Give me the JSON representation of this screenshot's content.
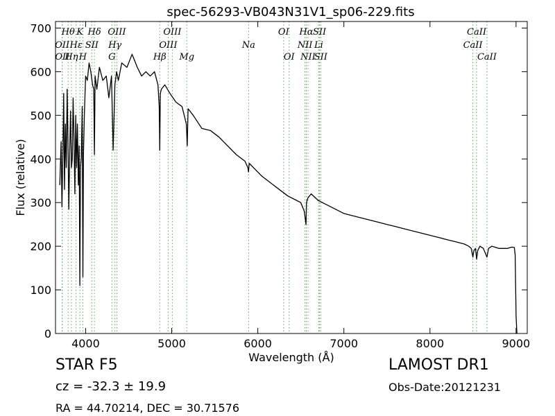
{
  "chart_data": {
    "type": "line",
    "title": "spec-56293-VB043N31V1_sp06-229.fits",
    "xlabel": "Wavelength (Å)",
    "ylabel": "Flux (relative)",
    "xlim": [
      3650,
      9130
    ],
    "ylim": [
      0,
      715
    ],
    "xticks": [
      4000,
      5000,
      6000,
      7000,
      8000,
      9000
    ],
    "yticks": [
      0,
      100,
      200,
      300,
      400,
      500,
      600,
      700
    ],
    "grid": false,
    "series": [
      {
        "name": "",
        "color": "#000000",
        "x": [
          3700,
          3715,
          3725,
          3735,
          3745,
          3755,
          3765,
          3775,
          3785,
          3795,
          3805,
          3815,
          3825,
          3835,
          3845,
          3855,
          3865,
          3875,
          3885,
          3895,
          3905,
          3915,
          3925,
          3933,
          3940,
          3950,
          3960,
          3968,
          3975,
          3985,
          4000,
          4020,
          4040,
          4060,
          4080,
          4095,
          4102,
          4110,
          4130,
          4160,
          4200,
          4240,
          4270,
          4300,
          4320,
          4340,
          4360,
          4380,
          4420,
          4480,
          4540,
          4600,
          4650,
          4700,
          4750,
          4800,
          4840,
          4855,
          4861,
          4868,
          4880,
          4920,
          4980,
          5050,
          5120,
          5170,
          5180,
          5190,
          5250,
          5350,
          5450,
          5550,
          5650,
          5750,
          5850,
          5885,
          5892,
          5900,
          5950,
          6050,
          6150,
          6250,
          6350,
          6450,
          6500,
          6540,
          6560,
          6563,
          6566,
          6580,
          6620,
          6700,
          6800,
          6900,
          7000,
          7100,
          7200,
          7300,
          7400,
          7500,
          7600,
          7700,
          7800,
          7900,
          8000,
          8100,
          8200,
          8300,
          8400,
          8450,
          8480,
          8498,
          8510,
          8530,
          8542,
          8555,
          8580,
          8620,
          8662,
          8680,
          8720,
          8800,
          8900,
          8950,
          8980,
          8990,
          9000,
          9010
        ],
        "values": [
          340,
          440,
          290,
          400,
          550,
          330,
          480,
          380,
          560,
          440,
          285,
          420,
          510,
          380,
          400,
          540,
          445,
          320,
          500,
          380,
          480,
          340,
          430,
          110,
          380,
          405,
          520,
          130,
          410,
          500,
          590,
          580,
          620,
          600,
          570,
          560,
          410,
          590,
          560,
          610,
          580,
          590,
          540,
          590,
          420,
          570,
          600,
          580,
          620,
          610,
          640,
          610,
          590,
          600,
          590,
          600,
          570,
          520,
          420,
          550,
          560,
          570,
          550,
          530,
          520,
          480,
          430,
          515,
          500,
          470,
          465,
          450,
          430,
          410,
          395,
          380,
          370,
          390,
          380,
          360,
          345,
          330,
          315,
          305,
          300,
          280,
          250,
          280,
          300,
          310,
          320,
          305,
          295,
          285,
          275,
          270,
          265,
          260,
          255,
          250,
          245,
          240,
          235,
          230,
          225,
          220,
          215,
          210,
          205,
          200,
          195,
          175,
          190,
          195,
          170,
          190,
          200,
          195,
          175,
          195,
          200,
          195,
          195,
          198,
          197,
          180,
          40,
          0
        ]
      }
    ],
    "spectral_lines": [
      {
        "label": "Hθ",
        "x": 3797,
        "row": 1
      },
      {
        "label": "K",
        "x": 3933,
        "row": 1
      },
      {
        "label": "Hδ",
        "x": 4102,
        "row": 1
      },
      {
        "label": "OIII",
        "x": 4363,
        "row": 1
      },
      {
        "label": "OIII",
        "x": 5007,
        "row": 1
      },
      {
        "label": "OI",
        "x": 6300,
        "row": 1
      },
      {
        "label": "Hα",
        "x": 6563,
        "row": 1
      },
      {
        "label": "SII",
        "x": 6717,
        "row": 1
      },
      {
        "label": "CaII",
        "x": 8542,
        "row": 1
      },
      {
        "label": "OII",
        "x": 3727,
        "row": 2
      },
      {
        "label": "Hε",
        "x": 3889,
        "row": 2
      },
      {
        "label": "SII",
        "x": 4072,
        "row": 2
      },
      {
        "label": "Hγ",
        "x": 4340,
        "row": 2
      },
      {
        "label": "OIII",
        "x": 4959,
        "row": 2
      },
      {
        "label": "Na",
        "x": 5893,
        "row": 2
      },
      {
        "label": "NII",
        "x": 6548,
        "row": 2
      },
      {
        "label": "Li",
        "x": 6708,
        "row": 2
      },
      {
        "label": "CaII",
        "x": 8498,
        "row": 2
      },
      {
        "label": "OII",
        "x": 3729,
        "row": 3
      },
      {
        "label": "Hη",
        "x": 3835,
        "row": 3
      },
      {
        "label": "H",
        "x": 3968,
        "row": 3
      },
      {
        "label": "G",
        "x": 4305,
        "row": 3
      },
      {
        "label": "Hβ",
        "x": 4861,
        "row": 3
      },
      {
        "label": "Mg",
        "x": 5175,
        "row": 3
      },
      {
        "label": "OI",
        "x": 6364,
        "row": 3
      },
      {
        "label": "NII",
        "x": 6583,
        "row": 3
      },
      {
        "label": "SII",
        "x": 6731,
        "row": 3
      },
      {
        "label": "CaII",
        "x": 8662,
        "row": 3
      }
    ],
    "line_marker_color": "#55aa55"
  },
  "footer": {
    "object_class": "STAR   F5",
    "redshift": "cz = -32.3 ± 19.9",
    "coordinates": "RA = 44.70214, DEC = 30.71576",
    "survey": "LAMOST DR1",
    "obs_date": "Obs-Date:20121231"
  }
}
